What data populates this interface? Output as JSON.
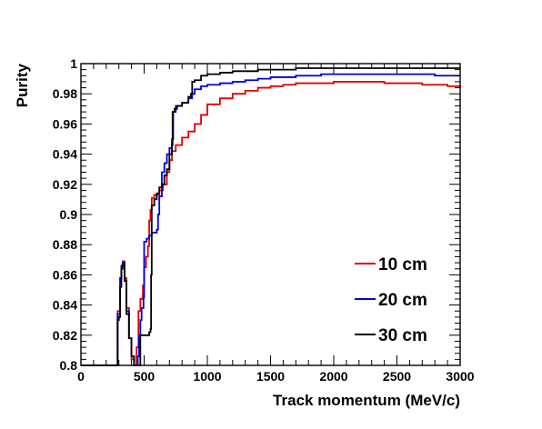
{
  "chart_data": {
    "type": "line",
    "title": "",
    "xlabel": "Track momentum (MeV/c)",
    "ylabel": "Purity",
    "xlim": [
      0,
      3000
    ],
    "ylim": [
      0.8,
      1.0
    ],
    "x_ticks": [
      0,
      500,
      1000,
      1500,
      2000,
      2500,
      3000
    ],
    "x_tick_labels": [
      "0",
      "500",
      "1000",
      "1500",
      "2000",
      "2500",
      "3000"
    ],
    "y_ticks": [
      0.8,
      0.82,
      0.84,
      0.86,
      0.88,
      0.9,
      0.92,
      0.94,
      0.96,
      0.98,
      1.0
    ],
    "y_tick_labels": [
      "0.8",
      "0.82",
      "0.84",
      "0.86",
      "0.88",
      "0.9",
      "0.92",
      "0.94",
      "0.96",
      "0.98",
      "1"
    ],
    "grid": false,
    "legend_position": "bottom-right",
    "series": [
      {
        "name": "10 cm",
        "color": "#e00000",
        "points": [
          [
            0,
            0.8
          ],
          [
            280,
            0.8
          ],
          [
            290,
            0.836
          ],
          [
            300,
            0.836
          ],
          [
            310,
            0.858
          ],
          [
            320,
            0.866
          ],
          [
            330,
            0.869
          ],
          [
            345,
            0.858
          ],
          [
            360,
            0.838
          ],
          [
            380,
            0.818
          ],
          [
            400,
            0.804
          ],
          [
            420,
            0.8
          ],
          [
            440,
            0.812
          ],
          [
            455,
            0.836
          ],
          [
            470,
            0.844
          ],
          [
            490,
            0.853
          ],
          [
            500,
            0.865
          ],
          [
            515,
            0.872
          ],
          [
            530,
            0.879
          ],
          [
            540,
            0.896
          ],
          [
            550,
            0.903
          ],
          [
            560,
            0.911
          ],
          [
            580,
            0.913
          ],
          [
            600,
            0.913
          ],
          [
            620,
            0.916
          ],
          [
            650,
            0.92
          ],
          [
            680,
            0.928
          ],
          [
            700,
            0.936
          ],
          [
            720,
            0.942
          ],
          [
            750,
            0.946
          ],
          [
            800,
            0.951
          ],
          [
            850,
            0.955
          ],
          [
            900,
            0.96
          ],
          [
            950,
            0.966
          ],
          [
            1000,
            0.973
          ],
          [
            1100,
            0.977
          ],
          [
            1200,
            0.98
          ],
          [
            1300,
            0.982
          ],
          [
            1400,
            0.984
          ],
          [
            1500,
            0.985
          ],
          [
            1600,
            0.986
          ],
          [
            1700,
            0.987
          ],
          [
            1800,
            0.987
          ],
          [
            1900,
            0.987
          ],
          [
            2000,
            0.988
          ],
          [
            2100,
            0.988
          ],
          [
            2200,
            0.988
          ],
          [
            2300,
            0.988
          ],
          [
            2400,
            0.987
          ],
          [
            2500,
            0.987
          ],
          [
            2600,
            0.987
          ],
          [
            2700,
            0.986
          ],
          [
            2800,
            0.986
          ],
          [
            2900,
            0.985
          ],
          [
            3000,
            0.984
          ]
        ]
      },
      {
        "name": "20 cm",
        "color": "#0000e0",
        "points": [
          [
            0,
            0.8
          ],
          [
            280,
            0.8
          ],
          [
            290,
            0.834
          ],
          [
            300,
            0.834
          ],
          [
            310,
            0.858
          ],
          [
            320,
            0.866
          ],
          [
            330,
            0.868
          ],
          [
            345,
            0.856
          ],
          [
            360,
            0.836
          ],
          [
            380,
            0.818
          ],
          [
            400,
            0.806
          ],
          [
            420,
            0.8
          ],
          [
            440,
            0.8
          ],
          [
            450,
            0.806
          ],
          [
            460,
            0.82
          ],
          [
            470,
            0.83
          ],
          [
            480,
            0.838
          ],
          [
            495,
            0.845
          ],
          [
            500,
            0.882
          ],
          [
            520,
            0.884
          ],
          [
            540,
            0.886
          ],
          [
            550,
            0.886
          ],
          [
            560,
            0.888
          ],
          [
            580,
            0.888
          ],
          [
            600,
            0.89
          ],
          [
            610,
            0.9
          ],
          [
            620,
            0.912
          ],
          [
            640,
            0.928
          ],
          [
            660,
            0.934
          ],
          [
            680,
            0.94
          ],
          [
            700,
            0.944
          ],
          [
            720,
            0.95
          ],
          [
            730,
            0.968
          ],
          [
            750,
            0.972
          ],
          [
            800,
            0.974
          ],
          [
            850,
            0.977
          ],
          [
            880,
            0.98
          ],
          [
            900,
            0.983
          ],
          [
            950,
            0.985
          ],
          [
            1000,
            0.986
          ],
          [
            1100,
            0.987
          ],
          [
            1200,
            0.988
          ],
          [
            1300,
            0.989
          ],
          [
            1400,
            0.99
          ],
          [
            1500,
            0.991
          ],
          [
            1600,
            0.991
          ],
          [
            1700,
            0.992
          ],
          [
            1800,
            0.992
          ],
          [
            1900,
            0.993
          ],
          [
            2000,
            0.993
          ],
          [
            2200,
            0.993
          ],
          [
            2400,
            0.993
          ],
          [
            2600,
            0.993
          ],
          [
            2800,
            0.992
          ],
          [
            3000,
            0.992
          ]
        ]
      },
      {
        "name": "30 cm",
        "color": "#000000",
        "points": [
          [
            0,
            0.8
          ],
          [
            280,
            0.8
          ],
          [
            290,
            0.83
          ],
          [
            300,
            0.832
          ],
          [
            310,
            0.852
          ],
          [
            320,
            0.864
          ],
          [
            330,
            0.867
          ],
          [
            345,
            0.856
          ],
          [
            360,
            0.834
          ],
          [
            380,
            0.818
          ],
          [
            400,
            0.806
          ],
          [
            420,
            0.8
          ],
          [
            440,
            0.8
          ],
          [
            470,
            0.82
          ],
          [
            500,
            0.82
          ],
          [
            520,
            0.82
          ],
          [
            540,
            0.822
          ],
          [
            550,
            0.824
          ],
          [
            555,
            0.86
          ],
          [
            560,
            0.906
          ],
          [
            580,
            0.91
          ],
          [
            600,
            0.914
          ],
          [
            620,
            0.918
          ],
          [
            640,
            0.92
          ],
          [
            660,
            0.926
          ],
          [
            680,
            0.93
          ],
          [
            700,
            0.94
          ],
          [
            720,
            0.946
          ],
          [
            725,
            0.968
          ],
          [
            740,
            0.97
          ],
          [
            760,
            0.972
          ],
          [
            800,
            0.974
          ],
          [
            850,
            0.978
          ],
          [
            870,
            0.98
          ],
          [
            880,
            0.988
          ],
          [
            900,
            0.989
          ],
          [
            950,
            0.992
          ],
          [
            1000,
            0.993
          ],
          [
            1100,
            0.994
          ],
          [
            1200,
            0.995
          ],
          [
            1300,
            0.995
          ],
          [
            1400,
            0.996
          ],
          [
            1500,
            0.996
          ],
          [
            1600,
            0.996
          ],
          [
            1700,
            0.997
          ],
          [
            1800,
            0.997
          ],
          [
            2000,
            0.997
          ],
          [
            2200,
            0.997
          ],
          [
            2400,
            0.997
          ],
          [
            2600,
            0.997
          ],
          [
            2800,
            0.997
          ],
          [
            3000,
            0.997
          ]
        ]
      }
    ]
  }
}
